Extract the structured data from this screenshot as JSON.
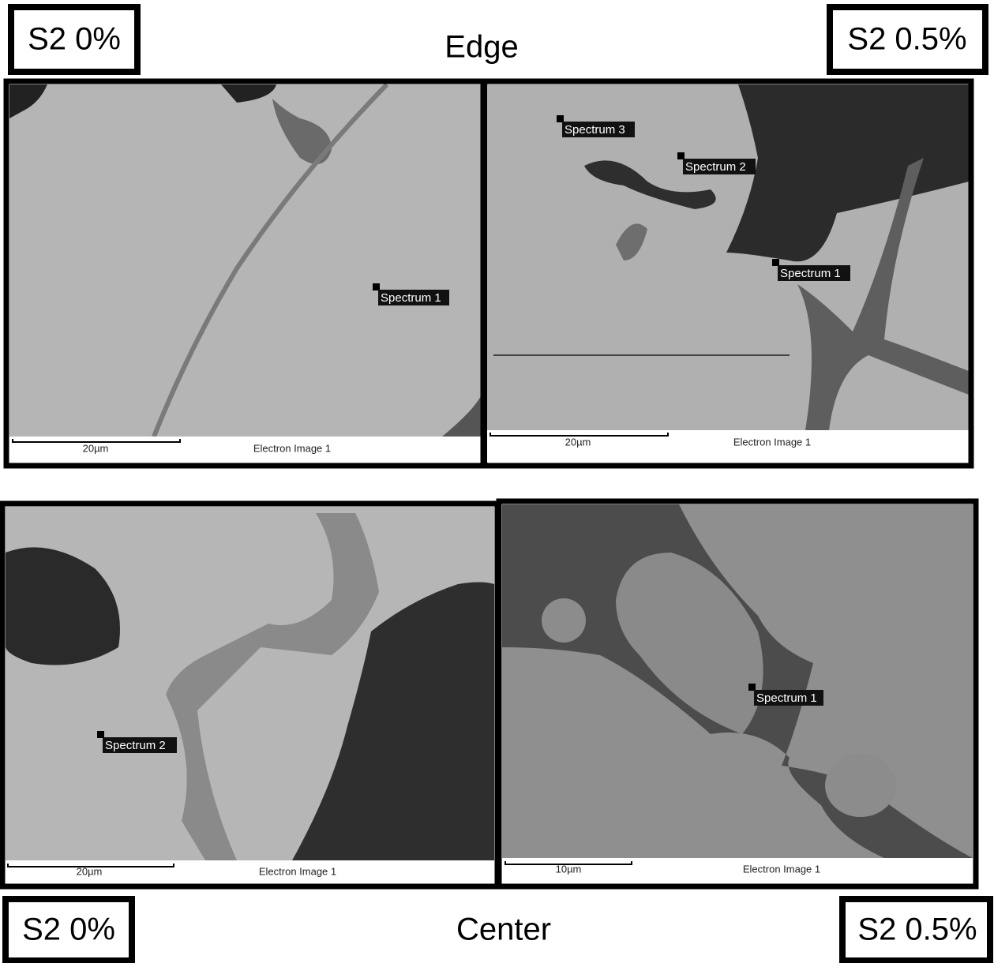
{
  "header": {
    "left_label": "S2 0%",
    "title": "Edge",
    "right_label": "S2 0.5%"
  },
  "panels": [
    {
      "scale_bar": "20µm",
      "caption": "Electron Image 1",
      "spectra": [
        "Spectrum 1"
      ]
    },
    {
      "scale_bar": "20µm",
      "caption": "Electron Image 1",
      "spectra": [
        "Spectrum 3",
        "Spectrum 2",
        "Spectrum 1"
      ]
    },
    {
      "scale_bar": "20µm",
      "caption": "Electron Image 1",
      "spectra": [
        "Spectrum 2"
      ]
    },
    {
      "scale_bar": "10µm",
      "caption": "Electron Image 1",
      "spectra": [
        "Spectrum 1"
      ]
    }
  ],
  "footer": {
    "left_label": "S2 0%",
    "title": "Center",
    "right_label": "S2 0.5%"
  }
}
